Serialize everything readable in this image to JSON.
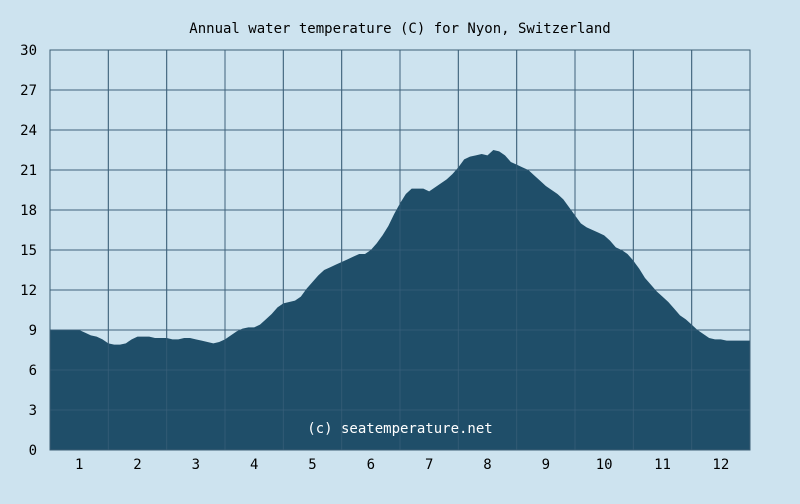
{
  "chart_data": {
    "type": "area",
    "title": "Annual water temperature (C) for Nyon, Switzerland",
    "watermark": "(c) seatemperature.net",
    "xlabel": "",
    "ylabel": "",
    "x_ticks": [
      "1",
      "2",
      "3",
      "4",
      "5",
      "6",
      "7",
      "8",
      "9",
      "10",
      "11",
      "12"
    ],
    "y_ticks": [
      "0",
      "3",
      "6",
      "9",
      "12",
      "15",
      "18",
      "21",
      "24",
      "27",
      "30"
    ],
    "ylim": [
      0,
      30
    ],
    "grid": true,
    "colors": {
      "background": "#cde3ef",
      "fill": "#1f4e69",
      "grid": "#3d5f75",
      "text": "#000000"
    },
    "series": [
      {
        "points": [
          [
            1.0,
            9.0
          ],
          [
            1.1,
            8.8
          ],
          [
            1.2,
            8.6
          ],
          [
            1.3,
            8.5
          ],
          [
            1.4,
            8.3
          ],
          [
            1.5,
            8.0
          ],
          [
            1.6,
            7.9
          ],
          [
            1.7,
            7.9
          ],
          [
            1.8,
            8.0
          ],
          [
            1.9,
            8.3
          ],
          [
            2.0,
            8.5
          ],
          [
            2.1,
            8.5
          ],
          [
            2.2,
            8.5
          ],
          [
            2.3,
            8.4
          ],
          [
            2.4,
            8.4
          ],
          [
            2.5,
            8.4
          ],
          [
            2.6,
            8.3
          ],
          [
            2.7,
            8.3
          ],
          [
            2.8,
            8.4
          ],
          [
            2.9,
            8.4
          ],
          [
            3.0,
            8.3
          ],
          [
            3.1,
            8.2
          ],
          [
            3.2,
            8.1
          ],
          [
            3.3,
            8.0
          ],
          [
            3.4,
            8.1
          ],
          [
            3.5,
            8.3
          ],
          [
            3.6,
            8.6
          ],
          [
            3.7,
            8.9
          ],
          [
            3.8,
            9.1
          ],
          [
            3.9,
            9.2
          ],
          [
            4.0,
            9.2
          ],
          [
            4.1,
            9.4
          ],
          [
            4.2,
            9.8
          ],
          [
            4.3,
            10.2
          ],
          [
            4.4,
            10.7
          ],
          [
            4.5,
            11.0
          ],
          [
            4.6,
            11.1
          ],
          [
            4.7,
            11.2
          ],
          [
            4.8,
            11.5
          ],
          [
            4.9,
            12.1
          ],
          [
            5.0,
            12.6
          ],
          [
            5.1,
            13.1
          ],
          [
            5.2,
            13.5
          ],
          [
            5.3,
            13.7
          ],
          [
            5.4,
            13.9
          ],
          [
            5.5,
            14.1
          ],
          [
            5.6,
            14.3
          ],
          [
            5.7,
            14.5
          ],
          [
            5.8,
            14.7
          ],
          [
            5.9,
            14.7
          ],
          [
            6.0,
            15.0
          ],
          [
            6.1,
            15.5
          ],
          [
            6.2,
            16.1
          ],
          [
            6.3,
            16.8
          ],
          [
            6.4,
            17.7
          ],
          [
            6.5,
            18.5
          ],
          [
            6.6,
            19.2
          ],
          [
            6.7,
            19.6
          ],
          [
            6.8,
            19.6
          ],
          [
            6.9,
            19.6
          ],
          [
            7.0,
            19.4
          ],
          [
            7.1,
            19.7
          ],
          [
            7.2,
            20.0
          ],
          [
            7.3,
            20.3
          ],
          [
            7.4,
            20.7
          ],
          [
            7.5,
            21.2
          ],
          [
            7.6,
            21.8
          ],
          [
            7.7,
            22.0
          ],
          [
            7.8,
            22.1
          ],
          [
            7.9,
            22.2
          ],
          [
            8.0,
            22.1
          ],
          [
            8.1,
            22.5
          ],
          [
            8.2,
            22.4
          ],
          [
            8.3,
            22.1
          ],
          [
            8.4,
            21.6
          ],
          [
            8.5,
            21.4
          ],
          [
            8.6,
            21.2
          ],
          [
            8.7,
            21.0
          ],
          [
            8.8,
            20.6
          ],
          [
            8.9,
            20.2
          ],
          [
            9.0,
            19.8
          ],
          [
            9.1,
            19.5
          ],
          [
            9.2,
            19.2
          ],
          [
            9.3,
            18.8
          ],
          [
            9.4,
            18.2
          ],
          [
            9.5,
            17.6
          ],
          [
            9.6,
            17.0
          ],
          [
            9.7,
            16.7
          ],
          [
            9.8,
            16.5
          ],
          [
            9.9,
            16.3
          ],
          [
            10.0,
            16.1
          ],
          [
            10.1,
            15.7
          ],
          [
            10.2,
            15.2
          ],
          [
            10.3,
            15.0
          ],
          [
            10.4,
            14.7
          ],
          [
            10.5,
            14.2
          ],
          [
            10.6,
            13.6
          ],
          [
            10.7,
            12.9
          ],
          [
            10.8,
            12.4
          ],
          [
            10.9,
            11.9
          ],
          [
            11.0,
            11.5
          ],
          [
            11.1,
            11.1
          ],
          [
            11.2,
            10.6
          ],
          [
            11.3,
            10.1
          ],
          [
            11.4,
            9.8
          ],
          [
            11.5,
            9.4
          ],
          [
            11.6,
            9.0
          ],
          [
            11.7,
            8.7
          ],
          [
            11.8,
            8.4
          ],
          [
            11.9,
            8.3
          ],
          [
            12.0,
            8.3
          ],
          [
            12.1,
            8.2
          ],
          [
            12.2,
            8.2
          ],
          [
            12.3,
            8.2
          ]
        ]
      }
    ]
  }
}
